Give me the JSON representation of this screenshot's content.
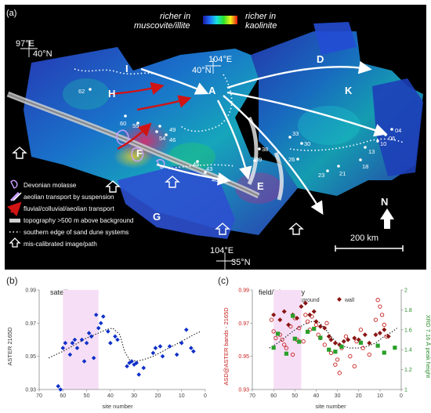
{
  "panel_a": {
    "label": "(a)",
    "colorbar_left": "richer in muscovite/illite",
    "colorbar_right": "richer in kaolinite",
    "coords": [
      "97°E",
      "40°N",
      "104°E",
      "40°N",
      "104°E",
      "35°N"
    ],
    "regions": [
      "I",
      "H",
      "A",
      "D",
      "K",
      "F",
      "E",
      "G"
    ],
    "sites": [
      "62",
      "60",
      "55",
      "49",
      "54",
      "46",
      "45",
      "43",
      "40",
      "39",
      "38",
      "33",
      "30",
      "26",
      "23",
      "21",
      "18",
      "13",
      "10",
      "06",
      "04"
    ],
    "legend": [
      "Devonian molasse",
      "aeolian transport by suspension",
      "fluvial/colluvial/aeolian transport",
      "topography >500 m above background",
      "southern edge of sand dune systems",
      "mis-calibrated image/path"
    ],
    "north": "N",
    "scale": "200 km",
    "colors": {
      "arrow_suspension": "#ffffff",
      "arrow_fluvial": "#cc1111",
      "molasse": "#c9a0ff"
    }
  },
  "chart_data": [
    {
      "type": "scatter",
      "panel": "(b)",
      "title": "satellite",
      "xlabel": "site number",
      "ylabel": "ASTER 2165D",
      "xlim": [
        70,
        0
      ],
      "ylim": [
        0.93,
        0.99
      ],
      "xticks": [
        "70",
        "60",
        "50",
        "40",
        "30",
        "20",
        "10",
        "0"
      ],
      "yticks": [
        "0.93",
        "0.95",
        "0.97",
        "0.99"
      ],
      "highlight": [
        60,
        45
      ],
      "points": [
        [
          62,
          0.932
        ],
        [
          61,
          0.93
        ],
        [
          60,
          0.955
        ],
        [
          59,
          0.958
        ],
        [
          57,
          0.951
        ],
        [
          56,
          0.958
        ],
        [
          55,
          0.96
        ],
        [
          54,
          0.955
        ],
        [
          52,
          0.96
        ],
        [
          51,
          0.947
        ],
        [
          50,
          0.958
        ],
        [
          49,
          0.964
        ],
        [
          48,
          0.962
        ],
        [
          47,
          0.949
        ],
        [
          46,
          0.975
        ],
        [
          45,
          0.967
        ],
        [
          44,
          0.97
        ],
        [
          43,
          0.974
        ],
        [
          41,
          0.965
        ],
        [
          40,
          0.958
        ],
        [
          38,
          0.962
        ],
        [
          37,
          0.96
        ],
        [
          33,
          0.944
        ],
        [
          32,
          0.946
        ],
        [
          31,
          0.947
        ],
        [
          30,
          0.945
        ],
        [
          29,
          0.946
        ],
        [
          28,
          0.939
        ],
        [
          26,
          0.943
        ],
        [
          22,
          0.952
        ],
        [
          21,
          0.955
        ],
        [
          19,
          0.956
        ],
        [
          18,
          0.95
        ],
        [
          15,
          0.956
        ],
        [
          12,
          0.951
        ],
        [
          10,
          0.958
        ],
        [
          8,
          0.966
        ],
        [
          6,
          0.955
        ],
        [
          5,
          0.953
        ]
      ],
      "trend": [
        [
          66,
          0.949
        ],
        [
          60,
          0.953
        ],
        [
          55,
          0.957
        ],
        [
          50,
          0.961
        ],
        [
          45,
          0.964
        ],
        [
          42,
          0.966
        ],
        [
          39,
          0.967
        ],
        [
          36,
          0.963
        ],
        [
          34,
          0.953
        ],
        [
          32,
          0.948
        ],
        [
          29,
          0.947
        ],
        [
          26,
          0.948
        ],
        [
          22,
          0.95
        ],
        [
          18,
          0.953
        ],
        [
          14,
          0.956
        ],
        [
          10,
          0.959
        ],
        [
          5,
          0.963
        ],
        [
          2,
          0.965
        ]
      ]
    },
    {
      "type": "scatter",
      "panel": "(c)",
      "title": "field/laboratory",
      "xlabel": "site number",
      "ylabel": "ASD@ASTER bands - 2165D",
      "ylabel_right": "XRD 7.16 Å peak height",
      "xlim": [
        70,
        0
      ],
      "ylim": [
        0.93,
        0.99
      ],
      "y2lim": [
        1,
        2
      ],
      "xticks": [
        "70",
        "60",
        "50",
        "40",
        "30",
        "20",
        "10",
        "0"
      ],
      "yticks": [
        "0.93",
        "0.95",
        "0.97",
        "0.99"
      ],
      "y2ticks": [
        "1",
        "1.2",
        "1.4",
        "1.6",
        "1.8",
        "2"
      ],
      "highlight": [
        60,
        47
      ],
      "series": [
        {
          "name": "background",
          "style": "open-circle",
          "color": "#c82020",
          "points": [
            [
              61,
              0.972
            ],
            [
              60,
              0.965
            ],
            [
              59,
              0.961
            ],
            [
              57,
              0.963
            ],
            [
              56,
              0.96
            ],
            [
              55,
              0.957
            ],
            [
              54,
              0.955
            ],
            [
              52,
              0.968
            ],
            [
              51,
              0.951
            ],
            [
              50,
              0.973
            ],
            [
              49,
              0.96
            ],
            [
              48,
              0.967
            ],
            [
              46,
              0.959
            ],
            [
              45,
              0.975
            ],
            [
              44,
              0.971
            ],
            [
              43,
              0.966
            ],
            [
              42,
              0.974
            ],
            [
              40,
              0.969
            ],
            [
              39,
              0.963
            ],
            [
              38,
              0.961
            ],
            [
              36,
              0.957
            ],
            [
              35,
              0.97
            ],
            [
              33,
              0.952
            ],
            [
              31,
              0.945
            ],
            [
              30,
              0.948
            ],
            [
              29,
              0.94
            ],
            [
              28,
              0.955
            ],
            [
              26,
              0.962
            ],
            [
              24,
              0.95
            ],
            [
              22,
              0.944
            ],
            [
              21,
              0.959
            ],
            [
              19,
              0.966
            ],
            [
              18,
              0.955
            ],
            [
              15,
              0.951
            ],
            [
              12,
              0.972
            ],
            [
              11,
              0.984
            ],
            [
              10,
              0.98
            ],
            [
              9,
              0.975
            ],
            [
              8,
              0.969
            ],
            [
              7,
              0.962
            ]
          ]
        },
        {
          "name": "wall",
          "style": "diamond",
          "color": "#8a1515",
          "points": [
            [
              60,
              0.975
            ],
            [
              57,
              0.972
            ],
            [
              55,
              0.977
            ],
            [
              53,
              0.969
            ],
            [
              51,
              0.975
            ],
            [
              49,
              0.973
            ],
            [
              47,
              0.98
            ],
            [
              45,
              0.982
            ],
            [
              43,
              0.975
            ],
            [
              41,
              0.977
            ],
            [
              40,
              0.971
            ],
            [
              38,
              0.968
            ],
            [
              36,
              0.967
            ],
            [
              34,
              0.962
            ],
            [
              33,
              0.96
            ],
            [
              31,
              0.958
            ],
            [
              29,
              0.957
            ],
            [
              27,
              0.959
            ],
            [
              25,
              0.96
            ],
            [
              22,
              0.961
            ],
            [
              20,
              0.96
            ],
            [
              17,
              0.963
            ],
            [
              15,
              0.958
            ],
            [
              12,
              0.963
            ],
            [
              10,
              0.964
            ],
            [
              8,
              0.966
            ],
            [
              6,
              0.962
            ]
          ]
        },
        {
          "name": "XRD 7.16 Å peak height",
          "style": "square",
          "color": "#2aa02a",
          "axis": "right",
          "points": [
            [
              60,
              1.42
            ],
            [
              58,
              1.56
            ],
            [
              54,
              1.36
            ],
            [
              51,
              1.74
            ],
            [
              50,
              1.51
            ],
            [
              48,
              1.48
            ],
            [
              44,
              1.58
            ],
            [
              41,
              1.61
            ],
            [
              38,
              1.52
            ],
            [
              34,
              1.4
            ],
            [
              31,
              1.38
            ],
            [
              28,
              1.43
            ],
            [
              19,
              1.47
            ],
            [
              11,
              1.44
            ],
            [
              8,
              1.37
            ],
            [
              3,
              1.42
            ]
          ]
        }
      ],
      "trend": [
        [
          62,
          0.955
        ],
        [
          58,
          0.958
        ],
        [
          54,
          0.962
        ],
        [
          50,
          0.966
        ],
        [
          46,
          0.969
        ],
        [
          42,
          0.971
        ],
        [
          39,
          0.971
        ],
        [
          36,
          0.967
        ],
        [
          33,
          0.962
        ],
        [
          30,
          0.958
        ],
        [
          27,
          0.956
        ],
        [
          24,
          0.955
        ],
        [
          20,
          0.955
        ],
        [
          16,
          0.956
        ],
        [
          12,
          0.958
        ],
        [
          8,
          0.962
        ],
        [
          4,
          0.965
        ],
        [
          2,
          0.967
        ]
      ]
    }
  ]
}
